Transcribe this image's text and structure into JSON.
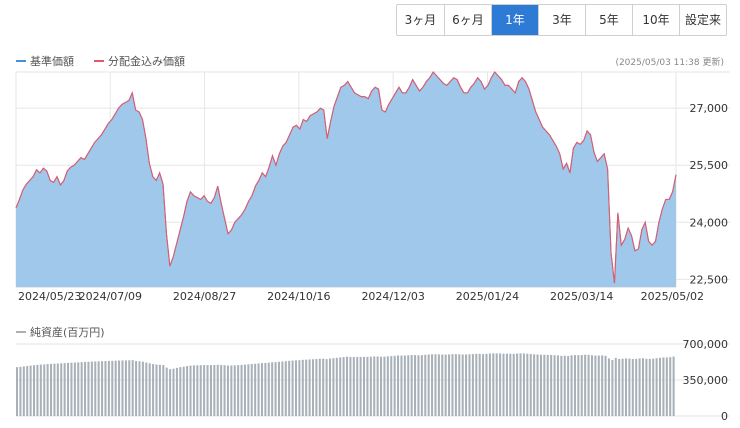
{
  "tabs": [
    {
      "label": "3ヶ月",
      "active": false
    },
    {
      "label": "6ヶ月",
      "active": false
    },
    {
      "label": "1年",
      "active": true
    },
    {
      "label": "3年",
      "active": false
    },
    {
      "label": "5年",
      "active": false
    },
    {
      "label": "10年",
      "active": false
    },
    {
      "label": "設定来",
      "active": false
    }
  ],
  "legend": {
    "base_price": "基準価額",
    "dividend_price": "分配金込み価額",
    "net_assets": "純資産(百万円)"
  },
  "updated": "(2025/05/03 11:38 更新)",
  "colors": {
    "base_price": "#4a90d9",
    "dividend_price": "#e05a6a",
    "area_fill": "#9fc8ea",
    "assets_bar": "#a8b0b8"
  },
  "chart_data": [
    {
      "type": "area",
      "title": "",
      "x_tick_labels": [
        "2024/05/23",
        "2024/07/09",
        "2024/08/27",
        "2024/10/16",
        "2024/12/03",
        "2025/01/24",
        "2025/03/14",
        "2025/05/02"
      ],
      "y_tick_labels": [
        "27,000",
        "25,500",
        "24,000",
        "22,500"
      ],
      "ylim": [
        22300,
        27950
      ],
      "series": [
        {
          "name": "基準価額",
          "values": [
            24380,
            24600,
            24850,
            25000,
            25100,
            25200,
            25380,
            25300,
            25420,
            25350,
            25100,
            25050,
            25200,
            24980,
            25100,
            25350,
            25450,
            25500,
            25600,
            25700,
            25650,
            25800,
            25950,
            26100,
            26200,
            26300,
            26450,
            26600,
            26700,
            26850,
            27000,
            27100,
            27150,
            27200,
            27400,
            26950,
            26900,
            26700,
            26200,
            25550,
            25200,
            25100,
            25300,
            25000,
            23700,
            22850,
            23100,
            23450,
            23800,
            24150,
            24550,
            24800,
            24700,
            24650,
            24600,
            24700,
            24550,
            24500,
            24650,
            24950,
            24500,
            24100,
            23700,
            23800,
            24000,
            24100,
            24200,
            24350,
            24550,
            24700,
            24950,
            25100,
            25300,
            25200,
            25450,
            25750,
            25500,
            25800,
            26000,
            26100,
            26300,
            26500,
            26550,
            26450,
            26700,
            26650,
            26800,
            26850,
            26900,
            27000,
            26950,
            26200,
            26650,
            27050,
            27300,
            27550,
            27600,
            27700,
            27550,
            27400,
            27350,
            27300,
            27300,
            27250,
            27450,
            27550,
            27500,
            26950,
            26900,
            27100,
            27250,
            27400,
            27550,
            27400,
            27400,
            27550,
            27750,
            27600,
            27450,
            27550,
            27700,
            27800,
            27950,
            27850,
            27750,
            27650,
            27600,
            27700,
            27800,
            27750,
            27550,
            27400,
            27400,
            27550,
            27650,
            27800,
            27700,
            27500,
            27600,
            27800,
            27950,
            27850,
            27750,
            27600,
            27600,
            27500,
            27400,
            27700,
            27800,
            27700,
            27500,
            27200,
            26900,
            26700,
            26500,
            26400,
            26300,
            26150,
            26000,
            25800,
            25400,
            25550,
            25300,
            25950,
            26100,
            26050,
            26150,
            26400,
            26300,
            25850,
            25600,
            25700,
            25800,
            25400,
            23200,
            22400,
            24250,
            23400,
            23550,
            23850,
            23650,
            23250,
            23300,
            23800,
            24000,
            23500,
            23400,
            23500,
            24000,
            24350,
            24600,
            24600,
            24800,
            25250
          ]
        }
      ]
    },
    {
      "type": "bar",
      "title": "",
      "y_tick_labels": [
        "700,000",
        "350,000",
        "0"
      ],
      "ylim": [
        0,
        700000
      ],
      "series": [
        {
          "name": "純資産(百万円)",
          "values": [
            475000,
            478000,
            482000,
            486000,
            490000,
            493000,
            497000,
            500000,
            502000,
            505000,
            507000,
            509000,
            510000,
            512000,
            514000,
            516000,
            518000,
            520000,
            522000,
            524000,
            526000,
            527000,
            529000,
            530000,
            532000,
            533000,
            534000,
            536000,
            537000,
            538000,
            539000,
            540000,
            541000,
            542000,
            543000,
            535000,
            532000,
            528000,
            520000,
            512000,
            505000,
            500000,
            498000,
            495000,
            470000,
            455000,
            460000,
            468000,
            475000,
            480000,
            486000,
            490000,
            492000,
            493000,
            494000,
            495000,
            495000,
            495000,
            496000,
            498000,
            496000,
            494000,
            490000,
            491000,
            493000,
            495000,
            497000,
            499000,
            502000,
            505000,
            508000,
            511000,
            514000,
            516000,
            519000,
            522000,
            524000,
            527000,
            530000,
            533000,
            536000,
            539000,
            541000,
            543000,
            546000,
            548000,
            550000,
            552000,
            554000,
            556000,
            557000,
            553000,
            558000,
            562000,
            566000,
            570000,
            573000,
            576000,
            575000,
            574000,
            574000,
            574000,
            575000,
            575000,
            577000,
            579000,
            579000,
            576000,
            577000,
            580000,
            582000,
            585000,
            588000,
            587000,
            588000,
            590000,
            593000,
            592000,
            590000,
            592000,
            595000,
            598000,
            600000,
            600000,
            599000,
            598000,
            597000,
            599000,
            601000,
            601000,
            600000,
            598000,
            598000,
            600000,
            602000,
            605000,
            604000,
            602000,
            604000,
            607000,
            610000,
            609000,
            608000,
            606000,
            606000,
            605000,
            604000,
            607000,
            609000,
            608000,
            606000,
            603000,
            600000,
            598000,
            596000,
            595000,
            594000,
            593000,
            591000,
            589000,
            585000,
            586000,
            583000,
            590000,
            592000,
            591000,
            593000,
            596000,
            595000,
            590000,
            587000,
            588000,
            589000,
            585000,
            560000,
            545000,
            565000,
            555000,
            557000,
            560000,
            558000,
            554000,
            555000,
            560000,
            562000,
            556000,
            555000,
            557000,
            562000,
            566000,
            569000,
            569000,
            572000,
            578000
          ]
        }
      ]
    }
  ]
}
